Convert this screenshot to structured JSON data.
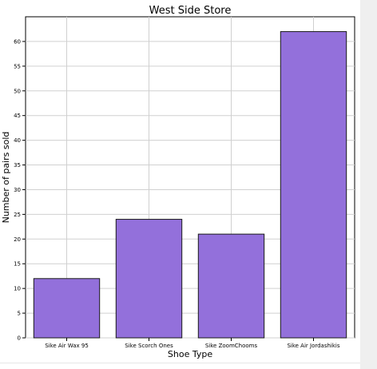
{
  "chart_data": {
    "type": "bar",
    "title": "West Side Store",
    "xlabel": "Shoe Type",
    "ylabel": "Number of pairs sold",
    "categories": [
      "Sike Air Wax 95",
      "Sike Scorch Ones",
      "Sike ZoomChooms",
      "Sike Air Jordashikis"
    ],
    "values": [
      12,
      24,
      21,
      62
    ],
    "ylim": [
      0,
      65
    ],
    "yticks": [
      0,
      5,
      10,
      15,
      20,
      25,
      30,
      35,
      40,
      45,
      50,
      55,
      60
    ],
    "grid": true,
    "bar_color": "#9370db",
    "edge_color": "#1a1a1a"
  }
}
